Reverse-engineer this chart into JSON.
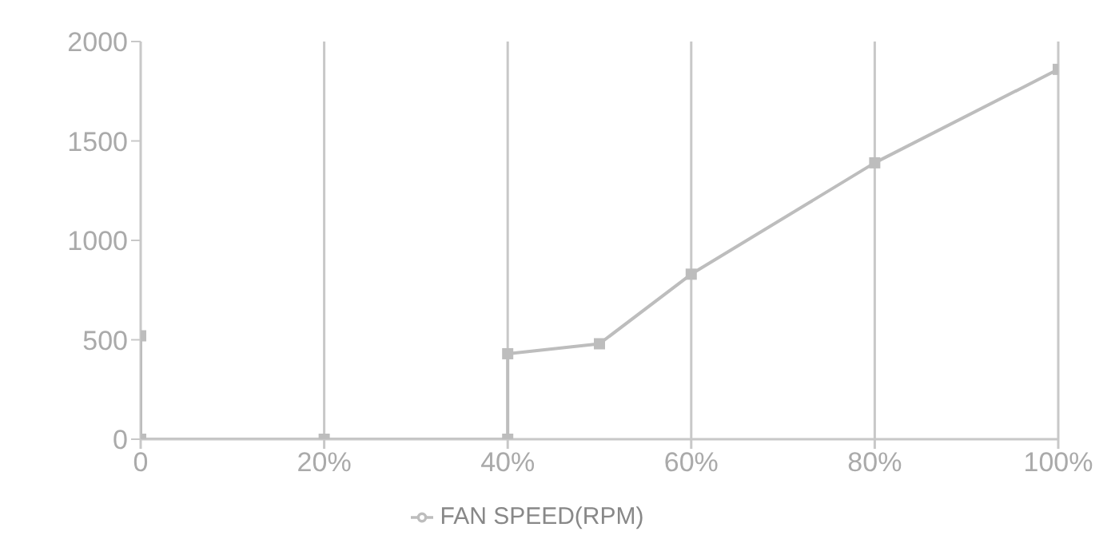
{
  "chart_data": {
    "type": "line",
    "x": [
      0,
      0,
      20,
      40,
      40,
      50,
      60,
      80,
      100
    ],
    "series": [
      {
        "name": "FAN SPEED(RPM)",
        "color": "#bdbdbd",
        "values": [
          520,
          0,
          0,
          0,
          430,
          480,
          830,
          1390,
          1860
        ]
      }
    ],
    "xlim": [
      0,
      100
    ],
    "xticks": [
      0,
      {
        "value": 20,
        "label": "20%"
      },
      {
        "value": 40,
        "label": "40%"
      },
      {
        "value": 60,
        "label": "60%"
      },
      {
        "value": 80,
        "label": "80%"
      },
      {
        "value": 100,
        "label": "100%"
      }
    ],
    "ylim": [
      0,
      2000
    ],
    "yticks": [
      0,
      500,
      1000,
      1500,
      2000
    ],
    "grid": "x",
    "legend": "bottom",
    "marker": "square",
    "line_style": "solid"
  }
}
